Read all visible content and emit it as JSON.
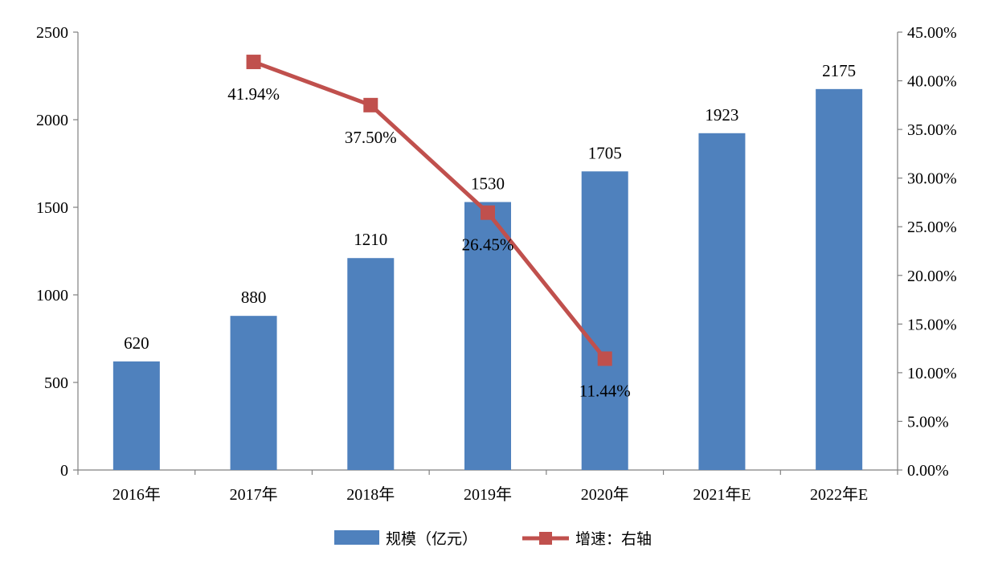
{
  "chart_data": {
    "type": "bar",
    "categories": [
      "2016年",
      "2017年",
      "2018年",
      "2019年",
      "2020年",
      "2021年E",
      "2022年E"
    ],
    "series": [
      {
        "name": "规模（亿元）",
        "type": "bar",
        "axis": "left",
        "color": "#4f81bd",
        "values": [
          620,
          880,
          1210,
          1530,
          1705,
          1923,
          2175
        ],
        "labels": [
          "620",
          "880",
          "1210",
          "1530",
          "1705",
          "1923",
          "2175"
        ]
      },
      {
        "name": "增速：右轴",
        "type": "line",
        "axis": "right",
        "color": "#c0504d",
        "values": [
          null,
          41.94,
          37.5,
          26.45,
          11.44,
          null,
          null
        ],
        "labels": [
          null,
          "41.94%",
          "37.50%",
          "26.45%",
          "11.44%",
          null,
          null
        ]
      }
    ],
    "y_left": {
      "ylim": [
        0,
        2500
      ],
      "ticks": [
        "0",
        "500",
        "1000",
        "1500",
        "2000",
        "2500"
      ]
    },
    "y_right": {
      "ylim": [
        0,
        45
      ],
      "ticks": [
        "0.00%",
        "5.00%",
        "10.00%",
        "15.00%",
        "20.00%",
        "25.00%",
        "30.00%",
        "35.00%",
        "40.00%",
        "45.00%"
      ]
    },
    "grid": false,
    "legend": "bottom"
  }
}
